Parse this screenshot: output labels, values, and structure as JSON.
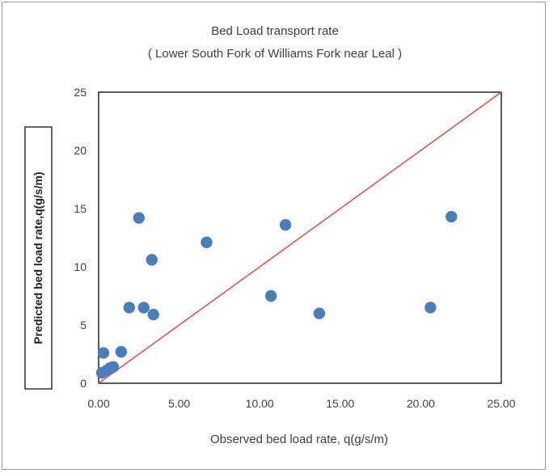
{
  "chart_data": {
    "type": "scatter",
    "title": "Bed Load transport rate",
    "subtitle": "( Lower South Fork of Williams Fork near Leal )",
    "xlabel": "Observed bed load rate, q(g/s/m)",
    "ylabel": "Predicted  bed  load  rate,q(g/s/m)",
    "xlim": [
      0,
      25
    ],
    "ylim": [
      0,
      25
    ],
    "x_ticks": [
      "0.00",
      "5.00",
      "10.00",
      "15.00",
      "20.00",
      "25.00"
    ],
    "y_ticks": [
      "0",
      "5",
      "10",
      "15",
      "20",
      "25"
    ],
    "grid": false,
    "legend": "none",
    "colors": {
      "points": "#4a7ebb",
      "reference_line": "#e8403c",
      "axis": "#595959"
    },
    "reference_line": {
      "from": [
        0,
        0
      ],
      "to": [
        25,
        25
      ]
    },
    "points": [
      {
        "x": 0.3,
        "y": 2.6
      },
      {
        "x": 0.2,
        "y": 0.9
      },
      {
        "x": 0.5,
        "y": 1.1
      },
      {
        "x": 0.7,
        "y": 1.3
      },
      {
        "x": 0.9,
        "y": 1.4
      },
      {
        "x": 1.4,
        "y": 2.7
      },
      {
        "x": 1.9,
        "y": 6.5
      },
      {
        "x": 2.5,
        "y": 14.2
      },
      {
        "x": 2.8,
        "y": 6.5
      },
      {
        "x": 3.3,
        "y": 10.6
      },
      {
        "x": 3.4,
        "y": 5.9
      },
      {
        "x": 6.7,
        "y": 12.1
      },
      {
        "x": 10.7,
        "y": 7.5
      },
      {
        "x": 11.6,
        "y": 13.6
      },
      {
        "x": 13.7,
        "y": 6.0
      },
      {
        "x": 20.6,
        "y": 6.5
      },
      {
        "x": 21.9,
        "y": 14.3
      }
    ]
  }
}
